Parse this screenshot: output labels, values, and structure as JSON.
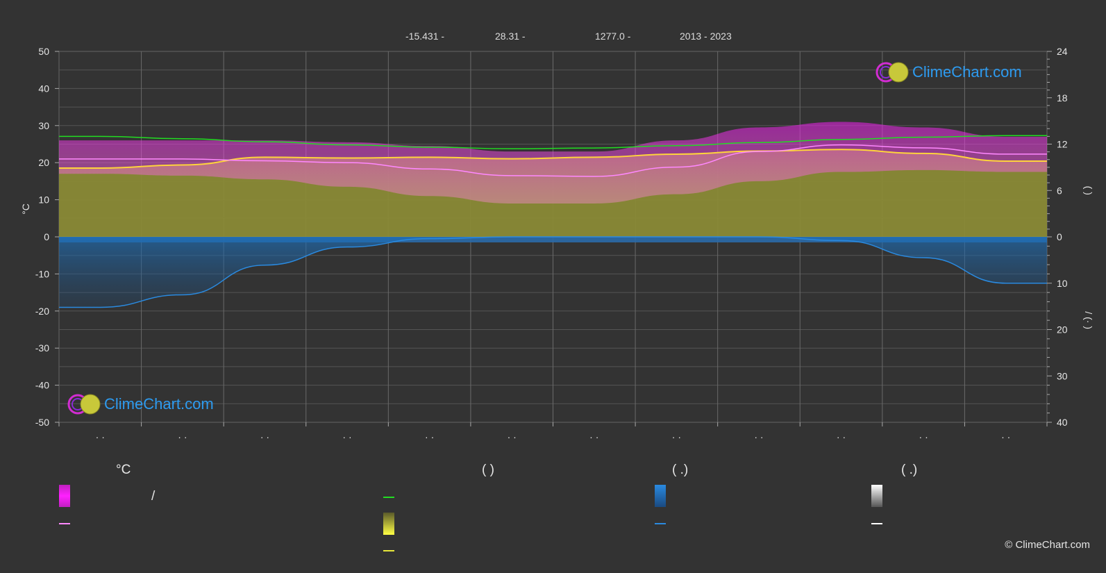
{
  "header": {
    "latitude": "-15.431 -",
    "longitude": "28.31 -",
    "elevation": "1277.0 -",
    "years": "2013 - 2023"
  },
  "logo_text": "ClimeChart.com",
  "copyright": "© ClimeChart.com",
  "legend": {
    "col1_head": "°C",
    "col1_slash": "/",
    "col2_head": "(          )",
    "col3_head": "(   .)",
    "col4_head": "(   .)"
  },
  "colors": {
    "background": "#333333",
    "temp_range": "#e020e0",
    "temp_mean": "#ff88ff",
    "daylight": "#22dd22",
    "sunshine": "#e8e83a",
    "sunshine_mean": "#ffd43b",
    "rain": "#2a8ae0",
    "rain_mean": "#2a8ae0",
    "snow": "#ffffff"
  },
  "chart_data": {
    "type": "area",
    "x_tick_labels": [
      "· ·",
      "· ·",
      "· ·",
      "· ·",
      "· ·",
      "· ·",
      "· ·",
      "· ·",
      "· ·",
      "· ·",
      "· ·",
      "· ·"
    ],
    "left_axis": {
      "label": "°C",
      "ylim": [
        -50,
        50
      ],
      "ticks": [
        50,
        40,
        30,
        20,
        10,
        0,
        -10,
        -20,
        -30,
        -40,
        -50
      ]
    },
    "right_axis_top": {
      "ylim": [
        0,
        24
      ],
      "ticks": [
        24,
        18,
        12,
        6,
        0
      ],
      "label": "(   )"
    },
    "right_axis_bottom": {
      "ylim": [
        0,
        40
      ],
      "ticks": [
        0,
        10,
        20,
        30,
        40
      ],
      "label": "/  (·  )"
    },
    "grid": true,
    "months": 12,
    "series": [
      {
        "key": "daylight",
        "axis": "hours",
        "values": [
          13.0,
          12.7,
          12.3,
          11.9,
          11.6,
          11.4,
          11.5,
          11.8,
          12.2,
          12.6,
          12.9,
          13.1
        ]
      },
      {
        "key": "sunshine_mean",
        "axis": "hours",
        "values": [
          8.9,
          9.3,
          10.3,
          10.2,
          10.3,
          10.1,
          10.3,
          10.7,
          11.1,
          11.3,
          10.8,
          9.8
        ]
      },
      {
        "key": "temp_mean",
        "axis": "celsius",
        "values": [
          21.0,
          21.0,
          20.5,
          20.0,
          18.3,
          16.5,
          16.3,
          18.8,
          23.0,
          24.8,
          24.0,
          22.3
        ]
      },
      {
        "key": "temp_max",
        "axis": "celsius",
        "values": [
          26.0,
          26.0,
          26.0,
          25.5,
          24.5,
          23.0,
          23.0,
          26.0,
          29.5,
          31.0,
          29.5,
          27.0
        ]
      },
      {
        "key": "temp_min",
        "axis": "celsius",
        "values": [
          17.0,
          16.5,
          15.5,
          13.5,
          11.0,
          9.0,
          9.0,
          11.5,
          15.0,
          17.5,
          18.0,
          17.5
        ]
      },
      {
        "key": "rain_mean",
        "axis": "mm",
        "values": [
          15.2,
          12.5,
          6.1,
          2.2,
          0.4,
          0.0,
          0.0,
          0.0,
          0.0,
          0.8,
          4.5,
          10.0
        ]
      }
    ]
  }
}
